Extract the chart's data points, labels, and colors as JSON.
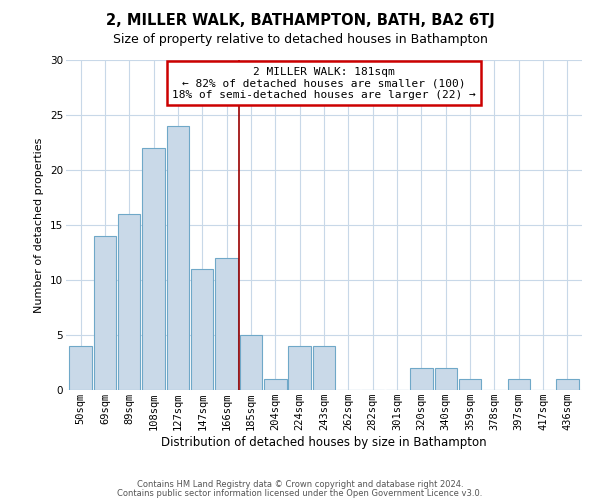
{
  "title": "2, MILLER WALK, BATHAMPTON, BATH, BA2 6TJ",
  "subtitle": "Size of property relative to detached houses in Bathampton",
  "xlabel": "Distribution of detached houses by size in Bathampton",
  "ylabel": "Number of detached properties",
  "bar_labels": [
    "50sqm",
    "69sqm",
    "89sqm",
    "108sqm",
    "127sqm",
    "147sqm",
    "166sqm",
    "185sqm",
    "204sqm",
    "224sqm",
    "243sqm",
    "262sqm",
    "282sqm",
    "301sqm",
    "320sqm",
    "340sqm",
    "359sqm",
    "378sqm",
    "397sqm",
    "417sqm",
    "436sqm"
  ],
  "bar_values": [
    4,
    14,
    16,
    22,
    24,
    11,
    12,
    5,
    1,
    4,
    4,
    0,
    0,
    0,
    2,
    2,
    1,
    0,
    1,
    0,
    1
  ],
  "bar_color": "#c9d9e8",
  "bar_edge_color": "#6fa8c8",
  "vline_pos": 6.5,
  "vline_color": "#990000",
  "annotation_title": "2 MILLER WALK: 181sqm",
  "annotation_line1": "← 82% of detached houses are smaller (100)",
  "annotation_line2": "18% of semi-detached houses are larger (22) →",
  "annotation_box_color": "#cc0000",
  "ylim": [
    0,
    30
  ],
  "yticks": [
    0,
    5,
    10,
    15,
    20,
    25,
    30
  ],
  "footer1": "Contains HM Land Registry data © Crown copyright and database right 2024.",
  "footer2": "Contains public sector information licensed under the Open Government Licence v3.0.",
  "bg_color": "#ffffff",
  "grid_color": "#c8d8e8",
  "title_fontsize": 10.5,
  "subtitle_fontsize": 9,
  "ylabel_fontsize": 8,
  "xlabel_fontsize": 8.5,
  "tick_fontsize": 7.5,
  "ann_fontsize": 8,
  "footer_fontsize": 6
}
